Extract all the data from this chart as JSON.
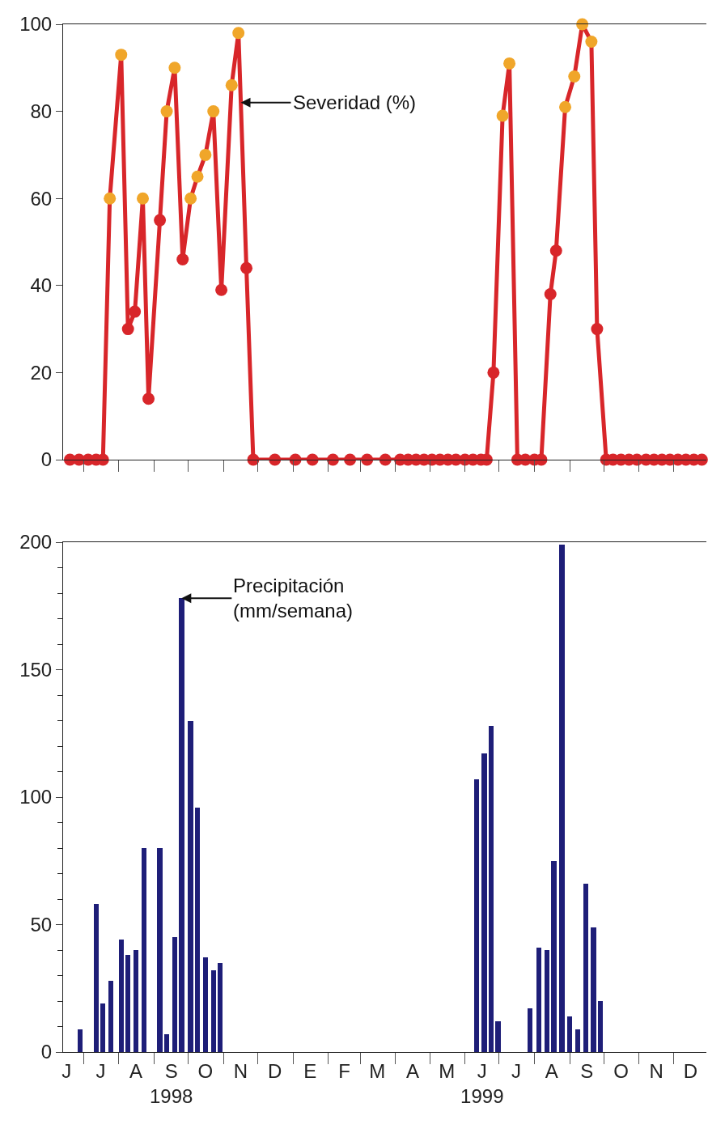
{
  "chart_data": [
    {
      "type": "line",
      "tick_labels": "y",
      "marker": "circle",
      "line_style": "solid",
      "xlim": [
        "1998-06-13",
        "1999-12-30"
      ],
      "xticks": [
        {
          "value": "1998-07-01",
          "label": null
        },
        {
          "value": "1998-08-01",
          "label": null
        },
        {
          "value": "1998-09-01",
          "label": null
        },
        {
          "value": "1998-10-01",
          "label": null
        },
        {
          "value": "1998-11-01",
          "label": null
        },
        {
          "value": "1998-12-01",
          "label": null
        },
        {
          "value": "1999-01-01",
          "label": null
        },
        {
          "value": "1999-02-01",
          "label": null
        },
        {
          "value": "1999-03-01",
          "label": null
        },
        {
          "value": "1999-04-01",
          "label": null
        },
        {
          "value": "1999-05-01",
          "label": null
        },
        {
          "value": "1999-06-01",
          "label": null
        },
        {
          "value": "1999-07-01",
          "label": null
        },
        {
          "value": "1999-08-01",
          "label": null
        },
        {
          "value": "1999-09-01",
          "label": null
        },
        {
          "value": "1999-10-01",
          "label": null
        },
        {
          "value": "1999-11-01",
          "label": null
        },
        {
          "value": "1999-12-01",
          "label": null
        }
      ],
      "ylim": [
        0,
        100
      ],
      "yticks": [
        0,
        20,
        40,
        60,
        80,
        100
      ],
      "annotations": [
        {
          "text": "Severidad (%)",
          "x": "1998-11-16",
          "y": 82
        }
      ],
      "series": [
        {
          "color": "#d8262a",
          "x": [
            "1998-06-19",
            "1998-06-27",
            "1998-07-05",
            "1998-07-12",
            "1998-07-18",
            "1998-07-24",
            "1998-08-03",
            "1998-08-09",
            "1998-08-15",
            "1998-08-22",
            "1998-08-27",
            "1998-09-06",
            "1998-09-12",
            "1998-09-19",
            "1998-09-26",
            "1998-10-03",
            "1998-10-09",
            "1998-10-16",
            "1998-10-23",
            "1998-10-30",
            "1998-11-08",
            "1998-11-14",
            "1998-11-21",
            "1998-11-27",
            "1998-12-16",
            "1999-01-03",
            "1999-01-18",
            "1999-02-05",
            "1999-02-20",
            "1999-03-07",
            "1999-03-23",
            "1999-04-05",
            "1999-04-12",
            "1999-04-19",
            "1999-04-26",
            "1999-05-03",
            "1999-05-10",
            "1999-05-17",
            "1999-05-24",
            "1999-06-01",
            "1999-06-08",
            "1999-06-15",
            "1999-06-20",
            "1999-06-26",
            "1999-07-04",
            "1999-07-10",
            "1999-07-17",
            "1999-07-24",
            "1999-08-01",
            "1999-08-07",
            "1999-08-15",
            "1999-08-20",
            "1999-08-28",
            "1999-09-05",
            "1999-09-12",
            "1999-09-20",
            "1999-09-25",
            "1999-10-03",
            "1999-10-09",
            "1999-10-16",
            "1999-10-23",
            "1999-10-30",
            "1999-11-07",
            "1999-11-14",
            "1999-11-21",
            "1999-11-28",
            "1999-12-05",
            "1999-12-12",
            "1999-12-19",
            "1999-12-26"
          ],
          "values": [
            0,
            0,
            0,
            0,
            0,
            60,
            93,
            30,
            34,
            60,
            14,
            55,
            80,
            90,
            46,
            60,
            65,
            70,
            80,
            39,
            86,
            98,
            44,
            0,
            0,
            0,
            0,
            0,
            0,
            0,
            0,
            0,
            0,
            0,
            0,
            0,
            0,
            0,
            0,
            0,
            0,
            0,
            0,
            20,
            79,
            91,
            0,
            0,
            0,
            0,
            38,
            48,
            81,
            88,
            100,
            96,
            30,
            0,
            0,
            0,
            0,
            0,
            0,
            0,
            0,
            0,
            0,
            0,
            0,
            0
          ],
          "colors": [
            "#d8262a",
            "#d8262a",
            "#d8262a",
            "#d8262a",
            "#d8262a",
            "#f0a62a",
            "#f0a62a",
            "#d8262a",
            "#d8262a",
            "#f0a62a",
            "#d8262a",
            "#d8262a",
            "#f0a62a",
            "#f0a62a",
            "#d8262a",
            "#f0a62a",
            "#f0a62a",
            "#f0a62a",
            "#f0a62a",
            "#d8262a",
            "#f0a62a",
            "#f0a62a",
            "#d8262a",
            "#d8262a",
            "#d8262a",
            "#d8262a",
            "#d8262a",
            "#d8262a",
            "#d8262a",
            "#d8262a",
            "#d8262a",
            "#d8262a",
            "#d8262a",
            "#d8262a",
            "#d8262a",
            "#d8262a",
            "#d8262a",
            "#d8262a",
            "#d8262a",
            "#d8262a",
            "#d8262a",
            "#d8262a",
            "#d8262a",
            "#d8262a",
            "#f0a62a",
            "#f0a62a",
            "#d8262a",
            "#d8262a",
            "#d8262a",
            "#d8262a",
            "#d8262a",
            "#d8262a",
            "#f0a62a",
            "#f0a62a",
            "#f0a62a",
            "#f0a62a",
            "#d8262a",
            "#d8262a",
            "#d8262a",
            "#d8262a",
            "#d8262a",
            "#d8262a",
            "#d8262a",
            "#d8262a",
            "#d8262a",
            "#d8262a",
            "#d8262a",
            "#d8262a",
            "#d8262a",
            "#d8262a"
          ]
        }
      ]
    },
    {
      "type": "bar",
      "xlim": [
        "1998-06-13",
        "1999-12-30"
      ],
      "xticks": [
        {
          "value": "1998-06-16",
          "label": "J"
        },
        {
          "value": "1998-07-16",
          "label": "J"
        },
        {
          "value": "1998-08-16",
          "label": "A"
        },
        {
          "value": "1998-09-16",
          "label": "S\n1998"
        },
        {
          "value": "1998-10-16",
          "label": "O"
        },
        {
          "value": "1998-11-16",
          "label": "N"
        },
        {
          "value": "1998-12-16",
          "label": "D"
        },
        {
          "value": "1999-01-16",
          "label": "E"
        },
        {
          "value": "1999-02-15",
          "label": "F"
        },
        {
          "value": "1999-03-16",
          "label": "M"
        },
        {
          "value": "1999-04-16",
          "label": "A"
        },
        {
          "value": "1999-05-16",
          "label": "M"
        },
        {
          "value": "1999-06-16",
          "label": "J\n1999"
        },
        {
          "value": "1999-07-16",
          "label": "J"
        },
        {
          "value": "1999-08-16",
          "label": "A"
        },
        {
          "value": "1999-09-16",
          "label": "S"
        },
        {
          "value": "1999-10-16",
          "label": "O"
        },
        {
          "value": "1999-11-16",
          "label": "N"
        },
        {
          "value": "1999-12-16",
          "label": "D"
        },
        {
          "value": "1998-07-01",
          "label": null
        },
        {
          "value": "1998-08-01",
          "label": null
        },
        {
          "value": "1998-09-01",
          "label": null
        },
        {
          "value": "1998-10-01",
          "label": null
        },
        {
          "value": "1998-11-01",
          "label": null
        },
        {
          "value": "1998-12-01",
          "label": null
        },
        {
          "value": "1999-01-01",
          "label": null
        },
        {
          "value": "1999-02-01",
          "label": null
        },
        {
          "value": "1999-03-01",
          "label": null
        },
        {
          "value": "1999-04-01",
          "label": null
        },
        {
          "value": "1999-05-01",
          "label": null
        },
        {
          "value": "1999-06-01",
          "label": null
        },
        {
          "value": "1999-07-01",
          "label": null
        },
        {
          "value": "1999-08-01",
          "label": null
        },
        {
          "value": "1999-09-01",
          "label": null
        },
        {
          "value": "1999-10-01",
          "label": null
        },
        {
          "value": "1999-11-01",
          "label": null
        },
        {
          "value": "1999-12-01",
          "label": null
        }
      ],
      "ylim": [
        0,
        200
      ],
      "yticks": [
        0,
        50,
        100,
        150,
        200,
        {
          "value": 10,
          "label": null
        },
        {
          "value": 20,
          "label": null
        },
        {
          "value": 30,
          "label": null
        },
        {
          "value": 40,
          "label": null
        },
        {
          "value": 60,
          "label": null
        },
        {
          "value": 70,
          "label": null
        },
        {
          "value": 80,
          "label": null
        },
        {
          "value": 90,
          "label": null
        },
        {
          "value": 110,
          "label": null
        },
        {
          "value": 120,
          "label": null
        },
        {
          "value": 130,
          "label": null
        },
        {
          "value": 140,
          "label": null
        },
        {
          "value": 160,
          "label": null
        },
        {
          "value": 170,
          "label": null
        },
        {
          "value": 180,
          "label": null
        },
        {
          "value": 190,
          "label": null
        }
      ],
      "annotations": [
        {
          "text": "Precipitación\n(mm/semana)",
          "x": "1998-09-25",
          "y": 178
        }
      ],
      "series": [
        {
          "color": "#1e1e78",
          "x": [
            "1998-06-28",
            "1998-07-12",
            "1998-07-18",
            "1998-07-25",
            "1998-08-03",
            "1998-08-09",
            "1998-08-16",
            "1998-08-23",
            "1998-09-06",
            "1998-09-12",
            "1998-09-19",
            "1998-09-25",
            "1998-10-03",
            "1998-10-09",
            "1998-10-16",
            "1998-10-23",
            "1998-10-29",
            "1999-06-11",
            "1999-06-18",
            "1999-06-24",
            "1999-06-30",
            "1999-07-28",
            "1999-08-05",
            "1999-08-12",
            "1999-08-18",
            "1999-08-25",
            "1999-09-01",
            "1999-09-08",
            "1999-09-15",
            "1999-09-22",
            "1999-09-28"
          ],
          "values": [
            9,
            58,
            19,
            28,
            44,
            38,
            40,
            80,
            80,
            7,
            45,
            178,
            130,
            96,
            37,
            32,
            35,
            107,
            117,
            128,
            12,
            17,
            41,
            40,
            75,
            199,
            14,
            9,
            66,
            49,
            20
          ]
        }
      ]
    }
  ]
}
